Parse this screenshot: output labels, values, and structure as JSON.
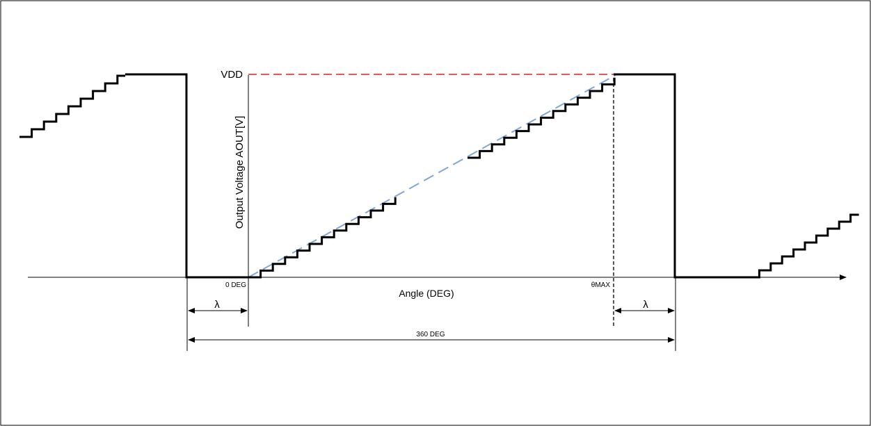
{
  "diagram": {
    "y_axis_label": "Output Voltage AOUT[V]",
    "x_axis_label": "Angle (DEG)",
    "vdd_label": "VDD",
    "zero_label": "0 DEG",
    "theta_max_label": "θMAX",
    "lambda_left_label": "λ",
    "lambda_right_label": "λ",
    "span_label": "360 DEG"
  },
  "colors": {
    "waveform": "#000000",
    "vdd_reference": "#e01f1f",
    "ideal_ramp": "#7fa7d6",
    "axis": "#000000"
  }
}
